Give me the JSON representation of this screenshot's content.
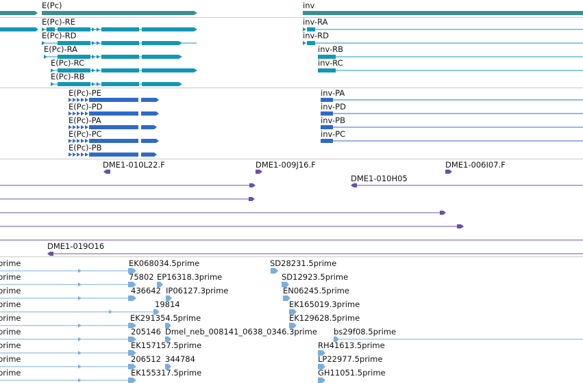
{
  "genes": {
    "labels": [
      "E(Pc)",
      "inv"
    ],
    "color": "#3a8f8f"
  },
  "transcripts": {
    "labels": [
      "E(Pc)-RE",
      "E(Pc)-RD",
      "E(Pc)-RA",
      "E(Pc)-RC",
      "E(Pc)-RB",
      "inv-RA",
      "inv-RD",
      "inv-RB",
      "inv-RC"
    ],
    "color": "#1497b5"
  },
  "proteins": {
    "labels": [
      "E(Pc)-PE",
      "E(Pc)-PD",
      "E(Pc)-PA",
      "E(Pc)-PC",
      "E(Pc)-PB",
      "inv-PA",
      "inv-PD",
      "inv-PB",
      "inv-PC"
    ],
    "color": "#2f6ac8"
  },
  "clones": {
    "labels": [
      "DME1-010L22.F",
      "DME1-009J16.F",
      "DME1-006I07.F",
      "DME1-010H05",
      "DME1-019O16"
    ],
    "color": "#6b4fa8"
  },
  "ests": {
    "left_labels": [
      "prime",
      "prime",
      "prime",
      "prime",
      "prime",
      "prime",
      "prime",
      "prime",
      "prime"
    ],
    "mid_labels": [
      "EK068034.5prime",
      "75802",
      "EP16318.3prime",
      "436642",
      "IP06127.3prime",
      "19814",
      "EK291354.5prime",
      "205146",
      "Dmel_neb_008141_0638_0346.3prime",
      "EK157157.5prime",
      "206512",
      "344784",
      "EK155317.5prime"
    ],
    "right_labels": [
      "SD28231.5prime",
      "SD12923.5prime",
      "EN06245.5prime",
      "EK165019.3prime",
      "EK129628.5prime",
      "bs29f08.5prime",
      "RH41613.5prime",
      "LP22977.5prime",
      "GH11051.5prime"
    ],
    "color": "#7aaedc"
  }
}
